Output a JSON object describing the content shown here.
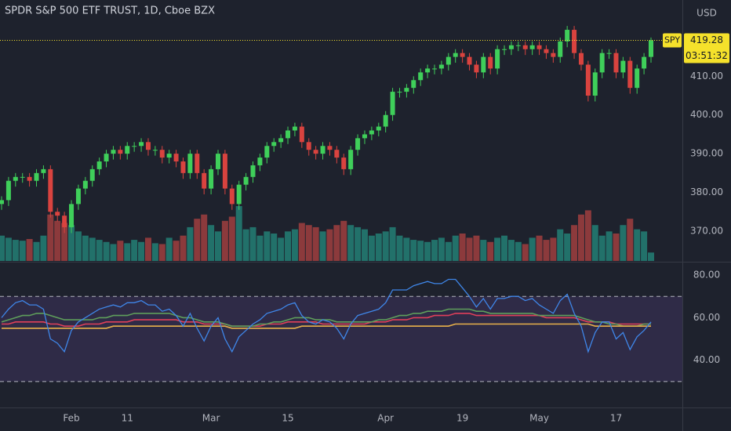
{
  "chart_data": [
    {
      "type": "candlestick",
      "title": "SPDR S&P 500 ETF TRUST, 1D, Cboe BZX",
      "currency": "USD",
      "symbol": "SPY",
      "countdown": "03:51:32",
      "categories": [
        null,
        null,
        null,
        null,
        null,
        null,
        null,
        null,
        null,
        null,
        "Feb",
        null,
        null,
        null,
        null,
        null,
        null,
        null,
        "11",
        null,
        null,
        null,
        null,
        null,
        null,
        null,
        null,
        null,
        null,
        null,
        "Mar",
        null,
        null,
        null,
        null,
        null,
        null,
        null,
        null,
        null,
        null,
        "15",
        null,
        null,
        null,
        null,
        null,
        null,
        null,
        null,
        null,
        null,
        null,
        null,
        null,
        "Apr",
        null,
        null,
        null,
        null,
        null,
        null,
        null,
        null,
        null,
        null,
        "19",
        null,
        null,
        null,
        null,
        null,
        null,
        null,
        null,
        null,
        null,
        "May",
        null,
        null,
        null,
        null,
        null,
        null,
        null,
        null,
        null,
        null,
        "17",
        null,
        null,
        null,
        null,
        null
      ],
      "open": [
        377,
        378,
        383,
        384,
        384,
        383,
        385,
        386,
        375,
        374,
        371,
        377,
        381,
        383,
        386,
        388,
        390,
        391,
        390,
        392,
        392,
        393,
        391,
        391,
        389,
        390,
        388,
        385,
        390,
        385,
        381,
        386,
        390,
        381,
        377,
        382,
        384,
        387,
        389,
        392,
        393,
        394,
        396,
        397,
        393,
        391,
        390,
        392,
        391,
        389,
        386,
        391,
        394,
        395,
        396,
        397,
        400,
        406,
        406,
        407,
        409,
        411,
        412,
        412,
        413,
        415,
        416,
        415,
        413,
        411,
        415,
        412,
        417,
        417,
        418,
        418,
        417,
        418,
        417,
        416,
        415,
        419,
        422,
        416,
        413,
        405,
        411,
        416,
        416,
        411,
        414,
        407,
        412,
        415
      ],
      "high": [
        379,
        384,
        385,
        385,
        385,
        386,
        387,
        387,
        376,
        375,
        378,
        382,
        384,
        387,
        389,
        391,
        392,
        392,
        393,
        393,
        394,
        394,
        392,
        392,
        391,
        391,
        389,
        391,
        391,
        386,
        387,
        391,
        391,
        382,
        383,
        385,
        388,
        390,
        393,
        394,
        395,
        397,
        398,
        398,
        394,
        392,
        393,
        393,
        392,
        390,
        392,
        395,
        396,
        397,
        398,
        401,
        407,
        407,
        408,
        410,
        412,
        413,
        413,
        414,
        416,
        417,
        417,
        416,
        414,
        416,
        416,
        418,
        418,
        419,
        419,
        419,
        419,
        419,
        418,
        417,
        420,
        423,
        423,
        417,
        414,
        412,
        417,
        417,
        417,
        415,
        415,
        413,
        416,
        420
      ],
      "low": [
        375.5,
        376.5,
        381.5,
        382.5,
        381.5,
        381.5,
        383.5,
        373.5,
        372.5,
        369.5,
        369.5,
        375.5,
        379.5,
        381.5,
        384.5,
        386.5,
        388.5,
        388.5,
        388.5,
        390.5,
        390.5,
        389.5,
        389.5,
        387.5,
        387.5,
        386.5,
        383.5,
        383.5,
        383.5,
        379.5,
        379.5,
        384.5,
        379.5,
        375.5,
        375.5,
        380.5,
        382.5,
        385.5,
        387.5,
        390.5,
        391.5,
        392.5,
        394.5,
        391.5,
        389.5,
        388.5,
        388.5,
        389.5,
        387.5,
        384.5,
        384.5,
        389.5,
        392.5,
        393.5,
        394.5,
        395.5,
        398.5,
        404.5,
        404.5,
        405.5,
        407.5,
        409.5,
        410.5,
        410.5,
        411.5,
        413.5,
        413.5,
        411.5,
        409.5,
        409.5,
        410.5,
        410.5,
        415.5,
        415.5,
        416.5,
        415.5,
        415.5,
        415.5,
        414.5,
        413.5,
        413.5,
        417.5,
        414.5,
        411.5,
        403.5,
        403.5,
        409.5,
        414.5,
        409.5,
        409.5,
        405.5,
        405.5,
        410.5,
        413.5
      ],
      "close": [
        378,
        383,
        384,
        384,
        383,
        385,
        386,
        375,
        374,
        371,
        377,
        381,
        383,
        386,
        388,
        390,
        391,
        390,
        392,
        392,
        393,
        391,
        391,
        389,
        390,
        388,
        385,
        390,
        385,
        381,
        386,
        390,
        381,
        377,
        382,
        384,
        387,
        389,
        392,
        393,
        394,
        396,
        397,
        393,
        391,
        390,
        392,
        391,
        389,
        386,
        391,
        394,
        395,
        396,
        397,
        400,
        406,
        406,
        407,
        409,
        411,
        412,
        412,
        413,
        415,
        416,
        415,
        413,
        411,
        415,
        412,
        417,
        417,
        418,
        418,
        417,
        418,
        417,
        416,
        415,
        419,
        422,
        416,
        413,
        405,
        411,
        416,
        416,
        411,
        414,
        407,
        412,
        415,
        419.28
      ],
      "volume": [
        60,
        55,
        50,
        48,
        52,
        45,
        60,
        110,
        95,
        90,
        85,
        70,
        60,
        55,
        50,
        45,
        40,
        48,
        42,
        50,
        45,
        55,
        42,
        40,
        55,
        48,
        60,
        80,
        100,
        110,
        85,
        70,
        95,
        105,
        130,
        75,
        80,
        60,
        70,
        65,
        55,
        70,
        75,
        90,
        85,
        80,
        70,
        75,
        85,
        95,
        85,
        80,
        75,
        60,
        65,
        70,
        80,
        60,
        55,
        50,
        48,
        45,
        50,
        55,
        45,
        60,
        65,
        55,
        60,
        50,
        45,
        55,
        60,
        50,
        45,
        40,
        55,
        60,
        50,
        55,
        75,
        65,
        85,
        110,
        120,
        85,
        60,
        70,
        65,
        85,
        100,
        75,
        70,
        20
      ],
      "up_color": "#3fcf5a",
      "down_color": "#d9433f",
      "volume_up_color": "#22716a",
      "volume_down_color": "#8c3a3c",
      "last_color": "#f5e12b",
      "ylim": [
        362.3,
        429.7
      ],
      "yticks": [
        {
          "value": 370,
          "label": "370.00"
        },
        {
          "value": 380,
          "label": "380.00"
        },
        {
          "value": 390,
          "label": "390.00"
        },
        {
          "value": 400,
          "label": "400.00"
        },
        {
          "value": 410,
          "label": "410.00"
        }
      ]
    },
    {
      "type": "line",
      "series": [
        {
          "color": "#e0405a",
          "values": [
            57,
            57,
            58,
            58,
            58,
            58,
            58,
            57,
            57,
            56,
            56,
            56,
            57,
            57,
            57,
            58,
            58,
            58,
            58,
            59,
            59,
            59,
            59,
            59,
            59,
            59,
            58,
            58,
            58,
            57,
            57,
            57,
            57,
            56,
            56,
            56,
            56,
            56,
            57,
            57,
            57,
            58,
            58,
            58,
            58,
            58,
            57,
            57,
            57,
            57,
            57,
            57,
            57,
            58,
            58,
            58,
            59,
            59,
            59,
            60,
            60,
            60,
            61,
            61,
            61,
            62,
            62,
            62,
            61,
            61,
            61,
            61,
            61,
            61,
            61,
            61,
            61,
            61,
            60,
            60,
            60,
            60,
            60,
            59,
            58,
            58,
            58,
            58,
            57,
            57,
            57,
            57,
            57,
            57
          ]
        },
        {
          "color": "#5f9e5b",
          "values": [
            58,
            59,
            60,
            61,
            61,
            62,
            62,
            61,
            60,
            59,
            59,
            59,
            59,
            59,
            60,
            60,
            61,
            61,
            61,
            62,
            62,
            62,
            62,
            62,
            62,
            61,
            60,
            60,
            59,
            58,
            58,
            58,
            57,
            56,
            56,
            56,
            56,
            57,
            57,
            58,
            58,
            59,
            60,
            60,
            60,
            59,
            59,
            59,
            58,
            58,
            58,
            58,
            58,
            58,
            59,
            59,
            60,
            61,
            61,
            62,
            62,
            63,
            63,
            63,
            64,
            64,
            64,
            64,
            63,
            63,
            62,
            62,
            62,
            62,
            62,
            62,
            62,
            61,
            61,
            61,
            61,
            61,
            61,
            60,
            59,
            58,
            58,
            57,
            57,
            56,
            56,
            56,
            57,
            57
          ]
        },
        {
          "color": "#e8b04a",
          "values": [
            55,
            55,
            55,
            55,
            55,
            55,
            55,
            55,
            55,
            55,
            55,
            55,
            55,
            55,
            55,
            55,
            56,
            56,
            56,
            56,
            56,
            56,
            56,
            56,
            56,
            56,
            56,
            56,
            56,
            56,
            56,
            56,
            56,
            55,
            55,
            55,
            55,
            55,
            55,
            55,
            55,
            55,
            55,
            56,
            56,
            56,
            56,
            56,
            56,
            56,
            56,
            56,
            56,
            56,
            56,
            56,
            56,
            56,
            56,
            56,
            56,
            56,
            56,
            56,
            56,
            57,
            57,
            57,
            57,
            57,
            57,
            57,
            57,
            57,
            57,
            57,
            57,
            57,
            57,
            57,
            57,
            57,
            57,
            57,
            57,
            56,
            56,
            56,
            56,
            56,
            56,
            56,
            56,
            56
          ]
        },
        {
          "color": "#3f86e8",
          "values": [
            60,
            64,
            67,
            68,
            66,
            66,
            64,
            50,
            48,
            44,
            54,
            58,
            60,
            62,
            64,
            65,
            66,
            65,
            67,
            67,
            68,
            66,
            66,
            63,
            64,
            61,
            56,
            62,
            55,
            49,
            56,
            60,
            50,
            44,
            51,
            54,
            57,
            59,
            62,
            63,
            64,
            66,
            67,
            61,
            58,
            57,
            59,
            58,
            55,
            50,
            57,
            61,
            62,
            63,
            64,
            67,
            73,
            73,
            73,
            75,
            76,
            77,
            76,
            76,
            78,
            78,
            74,
            70,
            65,
            69,
            64,
            69,
            69,
            70,
            70,
            68,
            69,
            66,
            64,
            62,
            68,
            71,
            62,
            56,
            44,
            53,
            58,
            58,
            50,
            53,
            45,
            51,
            54,
            58
          ]
        }
      ],
      "band": [
        70,
        30
      ],
      "band_color": "#7e57c2",
      "ylim": [
        17.8,
        85.9
      ],
      "yticks": [
        {
          "value": 40,
          "label": "40.00"
        },
        {
          "value": 60,
          "label": "60.00"
        },
        {
          "value": 80,
          "label": "80.00"
        }
      ]
    }
  ]
}
